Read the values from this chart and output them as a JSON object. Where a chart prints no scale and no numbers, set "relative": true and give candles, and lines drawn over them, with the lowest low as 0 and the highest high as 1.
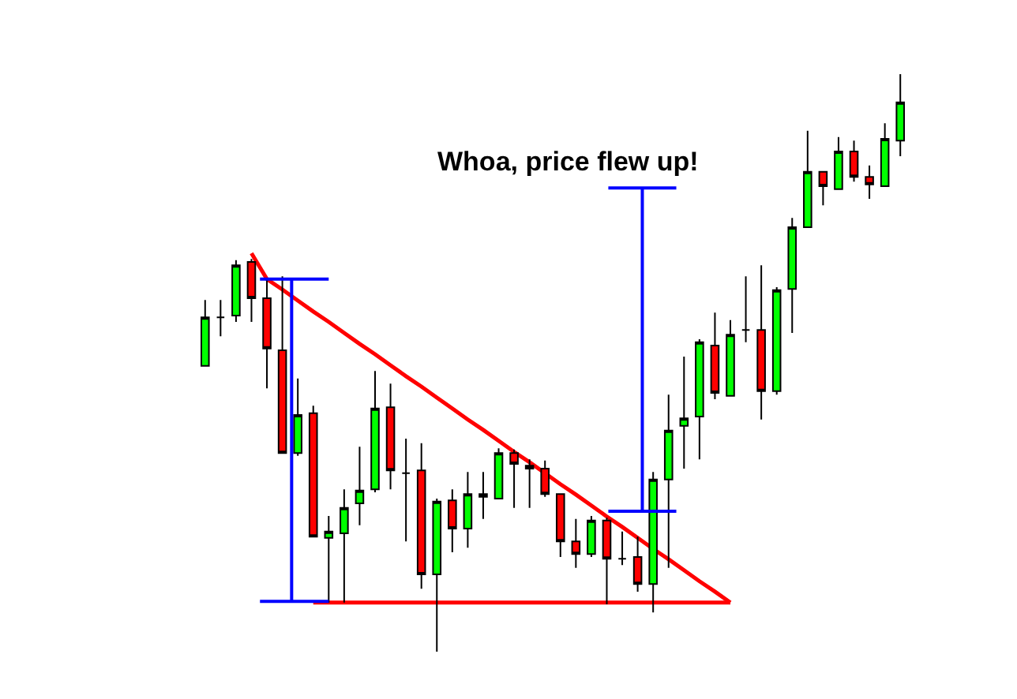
{
  "chart_data": {
    "type": "candlestick",
    "relative": true,
    "annotations": [
      "Whoa, price flew up!"
    ],
    "categories": [
      null,
      null,
      null,
      null,
      null,
      null,
      null,
      null,
      null,
      null,
      null,
      null,
      null,
      null,
      null,
      null,
      null,
      null,
      null,
      null,
      null,
      null,
      null,
      null,
      null,
      null,
      null,
      null,
      null,
      null,
      null,
      null,
      null,
      null,
      null,
      null,
      null,
      null,
      null,
      null,
      null,
      null,
      null,
      null,
      null,
      null
    ],
    "ohlc": [
      [
        0.495,
        0.609,
        0.495,
        0.579
      ],
      [
        0.579,
        0.609,
        0.546,
        0.579
      ],
      [
        0.582,
        0.678,
        0.571,
        0.669
      ],
      [
        0.675,
        0.68,
        0.571,
        0.612
      ],
      [
        0.612,
        0.645,
        0.456,
        0.525
      ],
      [
        0.522,
        0.65,
        0.344,
        0.344
      ],
      [
        0.344,
        0.473,
        0.339,
        0.41
      ],
      [
        0.413,
        0.426,
        0.199,
        0.199
      ],
      [
        0.197,
        0.235,
        0.085,
        0.208
      ],
      [
        0.205,
        0.281,
        0.085,
        0.249
      ],
      [
        0.257,
        0.355,
        0.219,
        0.279
      ],
      [
        0.281,
        0.486,
        0.276,
        0.421
      ],
      [
        0.423,
        0.464,
        0.281,
        0.314
      ],
      [
        0.309,
        0.369,
        0.191,
        0.309
      ],
      [
        0.314,
        0.361,
        0.109,
        0.134
      ],
      [
        0.134,
        0.265,
        0,
        0.26
      ],
      [
        0.262,
        0.281,
        0.172,
        0.213
      ],
      [
        0.213,
        0.311,
        0.18,
        0.273
      ],
      [
        0.273,
        0.311,
        0.23,
        0.268
      ],
      [
        0.265,
        0.352,
        0.265,
        0.344
      ],
      [
        0.344,
        0.35,
        0.249,
        0.325
      ],
      [
        0.322,
        0.333,
        0.249,
        0.317
      ],
      [
        0.317,
        0.331,
        0.268,
        0.273
      ],
      [
        0.273,
        0.273,
        0.164,
        0.191
      ],
      [
        0.191,
        0.23,
        0.145,
        0.169
      ],
      [
        0.169,
        0.235,
        0.164,
        0.227
      ],
      [
        0.227,
        0.232,
        0.082,
        0.161
      ],
      [
        0.161,
        0.208,
        0.15,
        0.161
      ],
      [
        0.164,
        0.199,
        0.104,
        0.117
      ],
      [
        0.117,
        0.311,
        0.068,
        0.298
      ],
      [
        0.298,
        0.445,
        0.145,
        0.383
      ],
      [
        0.391,
        0.511,
        0.317,
        0.404
      ],
      [
        0.407,
        0.541,
        0.333,
        0.536
      ],
      [
        0.53,
        0.587,
        0.437,
        0.448
      ],
      [
        0.443,
        0.574,
        0.443,
        0.549
      ],
      [
        0.557,
        0.65,
        0.536,
        0.557
      ],
      [
        0.557,
        0.669,
        0.402,
        0.451
      ],
      [
        0.451,
        0.631,
        0.445,
        0.626
      ],
      [
        0.628,
        0.751,
        0.552,
        0.735
      ],
      [
        0.735,
        0.902,
        0.735,
        0.831
      ],
      [
        0.831,
        0.831,
        0.773,
        0.806
      ],
      [
        0.801,
        0.891,
        0.801,
        0.866
      ],
      [
        0.866,
        0.885,
        0.814,
        0.822
      ],
      [
        0.822,
        0.842,
        0.784,
        0.809
      ],
      [
        0.806,
        0.915,
        0.806,
        0.888
      ],
      [
        0.885,
        1,
        0.858,
        0.951
      ]
    ],
    "series": [
      {
        "type": "line",
        "color": "#ff0000",
        "values": [
          null,
          null,
          null,
          0.69,
          0.645,
          0.627,
          0.608,
          0.589,
          0.571,
          0.552,
          0.533,
          0.515,
          0.496,
          0.477,
          0.459,
          0.44,
          0.421,
          0.402,
          0.384,
          0.365,
          0.346,
          0.328,
          0.309,
          0.29,
          0.272,
          0.253,
          0.234,
          0.216,
          0.197,
          0.178,
          0.16,
          0.141,
          0.122,
          0.104,
          0.085,
          null,
          null,
          null,
          null,
          null,
          null,
          null,
          null,
          null,
          null,
          null
        ]
      },
      {
        "type": "line",
        "color": "#ff0000",
        "values": [
          null,
          null,
          null,
          null,
          null,
          null,
          null,
          0.085,
          0.085,
          0.085,
          0.085,
          0.085,
          0.085,
          0.085,
          0.085,
          0.085,
          0.085,
          0.085,
          0.085,
          0.085,
          0.085,
          0.085,
          0.085,
          0.085,
          0.085,
          0.085,
          0.085,
          0.085,
          0.085,
          0.085,
          0.085,
          0.085,
          0.085,
          0.085,
          0.085,
          null,
          null,
          null,
          null,
          null,
          null,
          null,
          null,
          null,
          null,
          null
        ]
      }
    ]
  }
}
